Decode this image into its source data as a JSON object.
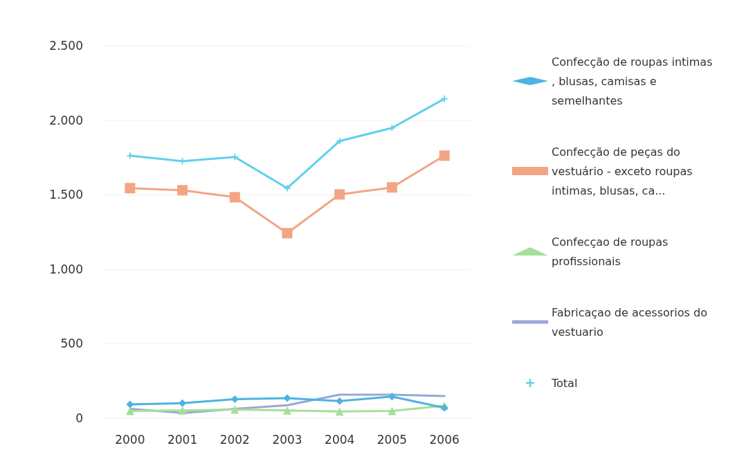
{
  "chart_data": {
    "type": "line",
    "categories": [
      "2000",
      "2001",
      "2002",
      "2003",
      "2004",
      "2005",
      "2006"
    ],
    "series": [
      {
        "name": "Confecção de roupas intimas, blusas, camisas e semelhantes",
        "color": "#4db3e2",
        "marker": "diamond",
        "values": [
          93,
          101,
          128,
          135,
          115,
          145,
          70
        ]
      },
      {
        "name": "Confecção de peças do vestuário - exceto roupas intimas, blusas, ca...",
        "color": "#f2a585",
        "marker": "square",
        "values": [
          1544,
          1530,
          1483,
          1242,
          1502,
          1549,
          1762
        ]
      },
      {
        "name": "Confecçao de roupas profissionais",
        "color": "#a6df98",
        "marker": "triangle",
        "values": [
          49,
          52,
          58,
          52,
          45,
          49,
          84
        ]
      },
      {
        "name": "Fabricaçao de acessorios do vestuario",
        "color": "#9aa6d8",
        "marker": "none",
        "values": [
          63,
          35,
          63,
          87,
          158,
          158,
          149
        ]
      },
      {
        "name": "Total",
        "color": "#5fd0ea",
        "marker": "cross",
        "values": [
          1762,
          1725,
          1753,
          1544,
          1860,
          1948,
          2144
        ]
      }
    ],
    "ylim": [
      0,
      2500
    ],
    "yticks": [
      0,
      500,
      {
        "value": 1000,
        "label": "1.000"
      },
      {
        "value": 1500,
        "label": "1.500"
      },
      {
        "value": 2000,
        "label": "2.000"
      },
      {
        "value": 2500,
        "label": "2.500"
      }
    ],
    "grid": "y",
    "legend": "right"
  }
}
